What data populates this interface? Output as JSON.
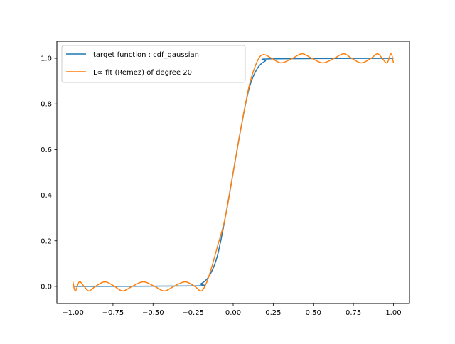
{
  "chart_data": {
    "type": "line",
    "title": "",
    "xlabel": "",
    "ylabel": "",
    "xlim": [
      -1.1,
      1.1
    ],
    "ylim": [
      -0.075,
      1.075
    ],
    "xticks": [
      -1.0,
      -0.75,
      -0.5,
      -0.25,
      0.0,
      0.25,
      0.5,
      0.75,
      1.0
    ],
    "xtick_labels": [
      "−1.00",
      "−0.75",
      "−0.50",
      "−0.25",
      "0.00",
      "0.25",
      "0.50",
      "0.75",
      "1.00"
    ],
    "yticks": [
      0.0,
      0.2,
      0.4,
      0.6,
      0.8,
      1.0
    ],
    "ytick_labels": [
      "0.0",
      "0.2",
      "0.4",
      "0.6",
      "0.8",
      "1.0"
    ],
    "grid": false,
    "legend_position": "upper left",
    "series": [
      {
        "name": "target function : cdf_gaussian",
        "color": "#1f77b4",
        "x": [
          -1.0,
          -0.25,
          -0.2,
          -0.15,
          -0.1,
          -0.05,
          0.0,
          0.05,
          0.1,
          0.15,
          0.2,
          0.25,
          1.0
        ],
        "y": [
          0.0,
          0.002,
          0.012,
          0.045,
          0.13,
          0.3,
          0.5,
          0.7,
          0.87,
          0.955,
          0.988,
          0.998,
          1.0
        ]
      },
      {
        "name": "L∞ fit (Remez) of degree 20",
        "color": "#ff7f0e",
        "x": [
          -1.0,
          -0.985,
          -0.96,
          -0.93,
          -0.9,
          -0.86,
          -0.8,
          -0.74,
          -0.69,
          -0.63,
          -0.56,
          -0.49,
          -0.43,
          -0.37,
          -0.3,
          -0.24,
          -0.2,
          -0.17,
          -0.14,
          -0.1,
          -0.05,
          0.0,
          0.05,
          0.1,
          0.14,
          0.17,
          0.2,
          0.24,
          0.3,
          0.37,
          0.43,
          0.49,
          0.56,
          0.63,
          0.69,
          0.74,
          0.8,
          0.86,
          0.9,
          0.93,
          0.96,
          0.985,
          1.0
        ],
        "y": [
          0.02,
          -0.02,
          0.02,
          0.0,
          -0.02,
          0.0,
          0.02,
          0.0,
          -0.02,
          0.0,
          0.02,
          0.0,
          -0.02,
          0.0,
          0.02,
          0.0,
          -0.02,
          0.01,
          0.07,
          0.17,
          0.3,
          0.5,
          0.7,
          0.88,
          0.97,
          1.01,
          1.015,
          1.0,
          0.98,
          1.0,
          1.02,
          1.0,
          0.98,
          1.0,
          1.02,
          1.0,
          0.98,
          1.0,
          1.02,
          1.0,
          0.98,
          1.02,
          0.98
        ]
      }
    ]
  }
}
